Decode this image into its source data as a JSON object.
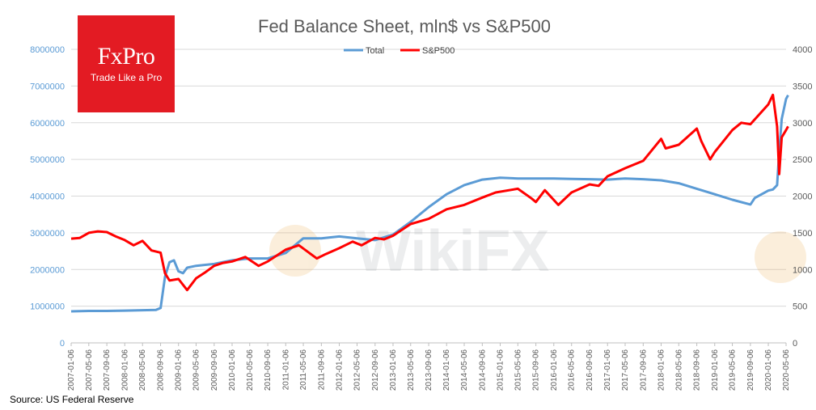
{
  "logo": {
    "brand": "FxPro",
    "tagline": "Trade Like a Pro"
  },
  "source": "Source: US Federal Reserve",
  "watermark": "WikiFX",
  "colors": {
    "total": "#5b9bd5",
    "sp500": "#ff0000",
    "title": "#595959",
    "logo_bg": "#e31b23",
    "grid": "#d9d9d9",
    "axis_text": "#5b9bd5",
    "right_axis_text": "#595959"
  },
  "chart_data": {
    "type": "line",
    "title": "Fed Balance Sheet, mln$ vs S&P500",
    "legend_position": "top-center",
    "grid": true,
    "x_labels": [
      "2007-01-06",
      "2007-05-06",
      "2007-09-06",
      "2008-01-06",
      "2008-05-06",
      "2008-09-06",
      "2009-01-06",
      "2009-05-06",
      "2009-09-06",
      "2010-01-06",
      "2010-05-06",
      "2010-09-06",
      "2011-01-06",
      "2011-05-06",
      "2011-09-06",
      "2012-01-06",
      "2012-05-06",
      "2012-09-06",
      "2013-01-06",
      "2013-05-06",
      "2013-09-06",
      "2014-01-06",
      "2014-05-06",
      "2014-09-06",
      "2015-01-06",
      "2015-05-06",
      "2015-09-06",
      "2016-01-06",
      "2016-05-06",
      "2016-09-06",
      "2017-01-06",
      "2017-05-06",
      "2017-09-06",
      "2018-01-06",
      "2018-05-06",
      "2018-09-06",
      "2019-01-06",
      "2019-05-06",
      "2019-09-06",
      "2020-01-06",
      "2020-05-06"
    ],
    "y_left": {
      "ylim": [
        0,
        8000000
      ],
      "ticks": [
        "0",
        "1000000",
        "2000000",
        "3000000",
        "4000000",
        "5000000",
        "6000000",
        "7000000",
        "8000000"
      ]
    },
    "y_right": {
      "ylim": [
        0,
        4000
      ],
      "ticks": [
        "0",
        "500",
        "1000",
        "1500",
        "2000",
        "2500",
        "3000",
        "3500",
        "4000"
      ]
    },
    "series": [
      {
        "name": "Total",
        "axis": "left",
        "x": [
          "2007-01-06",
          "2007-05-06",
          "2007-09-06",
          "2008-01-06",
          "2008-05-06",
          "2008-08-06",
          "2008-09-06",
          "2008-10-06",
          "2008-11-06",
          "2008-12-06",
          "2009-01-06",
          "2009-02-06",
          "2009-03-06",
          "2009-05-06",
          "2009-09-06",
          "2010-01-06",
          "2010-05-06",
          "2010-09-06",
          "2011-01-06",
          "2011-05-06",
          "2011-09-06",
          "2012-01-06",
          "2012-05-06",
          "2012-09-06",
          "2013-01-06",
          "2013-05-06",
          "2013-09-06",
          "2014-01-06",
          "2014-05-06",
          "2014-09-06",
          "2015-01-06",
          "2015-05-06",
          "2015-09-06",
          "2016-01-06",
          "2016-05-06",
          "2016-09-06",
          "2017-01-06",
          "2017-05-06",
          "2017-09-06",
          "2018-01-06",
          "2018-05-06",
          "2018-09-06",
          "2019-01-06",
          "2019-05-06",
          "2019-09-06",
          "2019-10-06",
          "2020-01-06",
          "2020-02-06",
          "2020-03-06",
          "2020-03-20",
          "2020-04-06",
          "2020-05-06",
          "2020-05-20"
        ],
        "values": [
          860000,
          870000,
          870000,
          880000,
          890000,
          900000,
          950000,
          1800000,
          2200000,
          2250000,
          1950000,
          1900000,
          2050000,
          2100000,
          2150000,
          2250000,
          2300000,
          2300000,
          2450000,
          2850000,
          2850000,
          2900000,
          2850000,
          2800000,
          2950000,
          3300000,
          3700000,
          4050000,
          4300000,
          4450000,
          4500000,
          4480000,
          4480000,
          4480000,
          4470000,
          4460000,
          4450000,
          4480000,
          4460000,
          4430000,
          4350000,
          4200000,
          4050000,
          3900000,
          3770000,
          3950000,
          4150000,
          4180000,
          4300000,
          5200000,
          6100000,
          6650000,
          6750000
        ]
      },
      {
        "name": "S&P500",
        "axis": "right",
        "x": [
          "2007-01-06",
          "2007-03-06",
          "2007-05-06",
          "2007-07-06",
          "2007-09-06",
          "2007-11-06",
          "2008-01-06",
          "2008-03-06",
          "2008-05-06",
          "2008-07-06",
          "2008-09-06",
          "2008-10-06",
          "2008-11-06",
          "2009-01-06",
          "2009-03-06",
          "2009-05-06",
          "2009-07-06",
          "2009-09-06",
          "2009-11-06",
          "2010-01-06",
          "2010-04-06",
          "2010-07-06",
          "2010-09-06",
          "2011-01-06",
          "2011-04-06",
          "2011-08-06",
          "2011-10-06",
          "2012-01-06",
          "2012-04-06",
          "2012-06-06",
          "2012-09-06",
          "2012-11-06",
          "2013-01-06",
          "2013-05-06",
          "2013-09-06",
          "2014-01-06",
          "2014-05-06",
          "2014-09-06",
          "2014-12-06",
          "2015-05-06",
          "2015-08-06",
          "2015-09-06",
          "2015-11-06",
          "2016-02-06",
          "2016-05-06",
          "2016-09-06",
          "2016-11-06",
          "2017-01-06",
          "2017-05-06",
          "2017-09-06",
          "2018-01-06",
          "2018-02-06",
          "2018-05-06",
          "2018-09-06",
          "2018-10-06",
          "2018-12-06",
          "2019-01-06",
          "2019-05-06",
          "2019-07-06",
          "2019-09-06",
          "2020-01-06",
          "2020-02-06",
          "2020-03-06",
          "2020-03-20",
          "2020-04-06",
          "2020-05-06",
          "2020-05-20"
        ],
        "values": [
          1420,
          1430,
          1500,
          1520,
          1510,
          1450,
          1400,
          1330,
          1390,
          1260,
          1230,
          950,
          850,
          870,
          720,
          880,
          960,
          1050,
          1090,
          1110,
          1170,
          1050,
          1110,
          1270,
          1330,
          1150,
          1210,
          1290,
          1380,
          1330,
          1430,
          1410,
          1460,
          1620,
          1690,
          1820,
          1880,
          1980,
          2050,
          2100,
          1970,
          1920,
          2080,
          1880,
          2050,
          2160,
          2140,
          2270,
          2380,
          2480,
          2780,
          2650,
          2700,
          2920,
          2750,
          2500,
          2600,
          2900,
          3000,
          2980,
          3250,
          3380,
          2950,
          2300,
          2800,
          2900,
          2950
        ]
      }
    ]
  }
}
